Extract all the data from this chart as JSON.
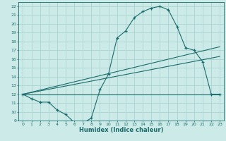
{
  "bg_color": "#cceae7",
  "grid_color": "#aad4d0",
  "line_color": "#1a6b6b",
  "xlabel": "Humidex (Indice chaleur)",
  "xlim": [
    -0.5,
    23.5
  ],
  "ylim": [
    9,
    22.5
  ],
  "xticks": [
    0,
    1,
    2,
    3,
    4,
    5,
    6,
    7,
    8,
    9,
    10,
    11,
    12,
    13,
    14,
    15,
    16,
    17,
    18,
    19,
    20,
    21,
    22,
    23
  ],
  "yticks": [
    9,
    10,
    11,
    12,
    13,
    14,
    15,
    16,
    17,
    18,
    19,
    20,
    21,
    22
  ],
  "curve1_x": [
    0,
    1,
    2,
    3,
    4,
    5,
    6,
    7,
    8,
    9,
    10,
    11,
    12,
    13,
    14,
    15,
    16,
    17,
    18,
    19,
    20,
    21,
    22,
    23
  ],
  "curve1_y": [
    12.0,
    11.5,
    11.1,
    11.1,
    10.2,
    9.7,
    8.8,
    8.7,
    9.3,
    12.5,
    14.3,
    18.4,
    19.2,
    20.7,
    21.4,
    21.8,
    22.0,
    21.6,
    19.7,
    17.3,
    17.0,
    15.7,
    12.0,
    12.0
  ],
  "line1_x": [
    0,
    23
  ],
  "line1_y": [
    12.0,
    17.4
  ],
  "line2_x": [
    0,
    23
  ],
  "line2_y": [
    12.0,
    16.3
  ],
  "line3_x": [
    0,
    23
  ],
  "line3_y": [
    12.0,
    12.0
  ]
}
